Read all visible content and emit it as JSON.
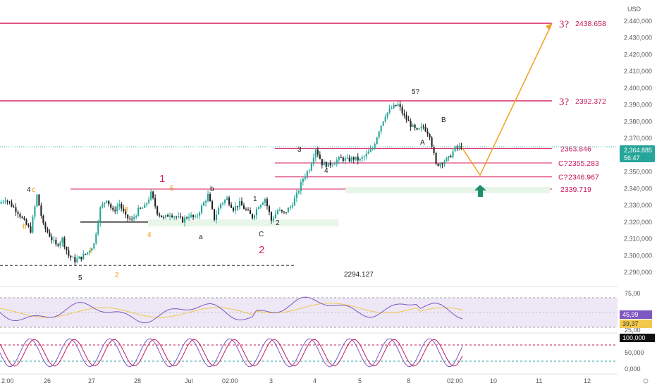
{
  "currency": "USD",
  "price_badge": {
    "value": "2,364.885",
    "countdown": "56:47"
  },
  "date_labels": [
    "2:00",
    "26",
    "27",
    "28",
    "Jul",
    "02:00",
    "3",
    "4",
    "5",
    "8",
    "02:00",
    "10",
    "11",
    "12"
  ],
  "annotations": {
    "low_value": "2294.127",
    "wave_labels": [
      {
        "text": "5",
        "color": "#222222"
      },
      {
        "text": "4",
        "color": "#222222"
      },
      {
        "text": "c",
        "color": "#e8960c"
      },
      {
        "text": "b",
        "color": "#e8960c"
      },
      {
        "text": "1",
        "color": "#e8960c"
      },
      {
        "text": "2",
        "color": "#e8960c"
      },
      {
        "text": "3",
        "color": "#e8960c"
      },
      {
        "text": "4",
        "color": "#e8960c"
      },
      {
        "text": "5",
        "color": "#e8960c"
      },
      {
        "text": "1",
        "color": "#d81b60"
      },
      {
        "text": "a",
        "color": "#222222"
      },
      {
        "text": "b",
        "color": "#222222"
      },
      {
        "text": "1",
        "color": "#222222"
      },
      {
        "text": "C",
        "color": "#222222"
      },
      {
        "text": "2",
        "color": "#222222"
      },
      {
        "text": "2",
        "color": "#d81b60"
      },
      {
        "text": "3",
        "color": "#222222"
      },
      {
        "text": "4",
        "color": "#222222"
      },
      {
        "text": "5?",
        "color": "#222222"
      },
      {
        "text": "A",
        "color": "#222222"
      },
      {
        "text": "B",
        "color": "#222222"
      }
    ]
  },
  "indicator_rsi": {
    "ticks": [
      "75,00",
      "25,00"
    ],
    "badges": [
      "45,99",
      "39,37"
    ],
    "colors": {
      "line": "#7e57c2",
      "ma": "#f2c94c",
      "fill": "#ede7f6"
    }
  },
  "indicator_stoch": {
    "ticks": [
      "50,000",
      "0,000"
    ],
    "badges": [
      "100,000"
    ],
    "colors": {
      "k": "#7e57c2",
      "d": "#c2185b"
    }
  },
  "colors": {
    "up": "#26a69a",
    "down": "#222222",
    "level": "#d81b60",
    "projection": "#f0a020",
    "arrow": "#1e8e6e"
  },
  "chart_data": {
    "type": "candlestick",
    "ylim": [
      2285,
      2445
    ],
    "y_ticks": [
      2290,
      2300,
      2310,
      2320,
      2330,
      2340,
      2350,
      2360,
      2370,
      2380,
      2390,
      2400,
      2410,
      2420,
      2430,
      2440
    ],
    "y_tick_labels": [
      "2.290,000",
      "2.300,000",
      "2.310,000",
      "2.320,000",
      "2.330,000",
      "2.340,000",
      "2.350,000",
      "2.360,000",
      "2.370,000",
      "2.380,000",
      "2.390,000",
      "2.400,000",
      "2.410,000",
      "2.420,000",
      "2.430,000",
      "2.440,000"
    ],
    "levels": [
      {
        "value": 2438.658,
        "label": "3?",
        "text": "2438.658"
      },
      {
        "value": 2392.372,
        "label": "3?",
        "text": "2392.372"
      },
      {
        "value": 2363.846,
        "label": "",
        "text": "2363.846"
      },
      {
        "value": 2355.283,
        "label": "C?",
        "text": "2355.283"
      },
      {
        "value": 2346.967,
        "label": "C?",
        "text": "2346.967"
      },
      {
        "value": 2339.719,
        "label": "",
        "text": "2339.719"
      }
    ],
    "support_level": 2320,
    "low_level": 2294.127,
    "current_price": 2364.885,
    "projection": [
      {
        "price": 2364
      },
      {
        "price": 2348
      },
      {
        "price": 2438.658
      }
    ],
    "price_path": [
      2331,
      2334,
      2330,
      2326,
      2320,
      2315,
      2336,
      2318,
      2312,
      2306,
      2310,
      2300,
      2297,
      2299,
      2302,
      2307,
      2328,
      2334,
      2326,
      2331,
      2323,
      2321,
      2327,
      2329,
      2337,
      2326,
      2322,
      2325,
      2323,
      2321,
      2324,
      2322,
      2329,
      2336,
      2322,
      2331,
      2334,
      2328,
      2331,
      2327,
      2323,
      2330,
      2334,
      2321,
      2327,
      2325,
      2329,
      2336,
      2346,
      2352,
      2364,
      2355,
      2354,
      2356,
      2358,
      2357,
      2358,
      2357,
      2360,
      2364,
      2375,
      2384,
      2388,
      2390,
      2383,
      2378,
      2374,
      2377,
      2372,
      2354,
      2356,
      2358,
      2364,
      2365
    ]
  }
}
